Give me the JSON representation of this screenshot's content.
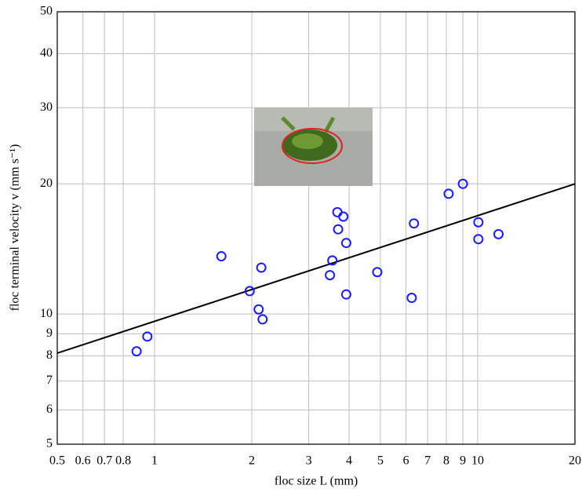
{
  "chart_data": {
    "type": "scatter",
    "xlabel": "floc size L (mm)",
    "ylabel": "floc terminal velocity v (mm s⁻¹)",
    "xscale": "log",
    "yscale": "log",
    "grid": true,
    "xlim": [
      0.5,
      20
    ],
    "ylim": [
      5,
      50
    ],
    "xticks": [
      0.5,
      0.6,
      0.7,
      0.8,
      1,
      2,
      3,
      4,
      5,
      6,
      7,
      8,
      9,
      10,
      20
    ],
    "yticks": [
      5,
      6,
      7,
      8,
      9,
      10,
      20,
      30,
      40,
      50
    ],
    "series": [
      {
        "color": "#1a1aff",
        "x": [
          0.88,
          0.95,
          1.61,
          2.14,
          1.97,
          2.1,
          2.16,
          3.55,
          3.49,
          3.68,
          3.84,
          3.7,
          3.92,
          3.92,
          4.89,
          6.35,
          6.25,
          8.13,
          9.0,
          10.05,
          10.05,
          11.6
        ],
        "values": [
          8.2,
          8.87,
          13.6,
          12.8,
          11.3,
          10.25,
          9.72,
          13.3,
          12.3,
          17.2,
          16.8,
          15.7,
          14.6,
          11.1,
          12.5,
          16.2,
          10.9,
          18.97,
          20.0,
          16.3,
          14.9,
          15.3
        ]
      }
    ],
    "fit": {
      "color": "#000000",
      "x": [
        0.5,
        20
      ],
      "values": [
        8.12,
        20.0
      ]
    }
  }
}
